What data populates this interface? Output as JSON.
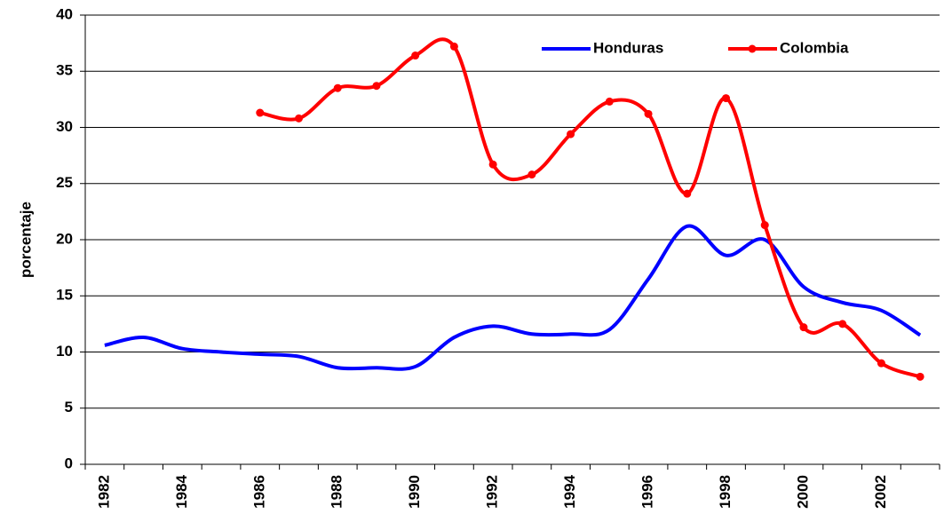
{
  "chart_data": {
    "type": "line",
    "y_label": "porcentaje",
    "categories": [
      "1982",
      null,
      "1984",
      null,
      "1986",
      null,
      "1988",
      null,
      "1990",
      null,
      "1992",
      null,
      "1994",
      null,
      "1996",
      null,
      "1998",
      null,
      "2000",
      null,
      "2002",
      null
    ],
    "series": [
      {
        "name": "Honduras",
        "color": "#0000ff",
        "marker": false,
        "values": [
          10.6,
          11.3,
          10.3,
          10.0,
          9.8,
          9.6,
          8.6,
          8.6,
          8.7,
          11.3,
          12.3,
          11.6,
          11.6,
          12.0,
          16.5,
          21.2,
          18.6,
          20.0,
          15.8,
          14.4,
          13.7,
          11.5
        ]
      },
      {
        "name": "Colombia",
        "color": "#ff0000",
        "marker": true,
        "values": [
          null,
          null,
          null,
          null,
          31.3,
          30.8,
          33.5,
          33.7,
          36.4,
          37.2,
          26.7,
          25.8,
          29.4,
          32.3,
          31.2,
          24.1,
          32.6,
          21.3,
          12.2,
          12.5,
          9.0,
          7.8
        ]
      }
    ],
    "ylim": [
      0,
      40
    ],
    "yticks": [
      0,
      5,
      10,
      15,
      20,
      25,
      30,
      35,
      40
    ],
    "grid": true,
    "legend": "top-right"
  }
}
